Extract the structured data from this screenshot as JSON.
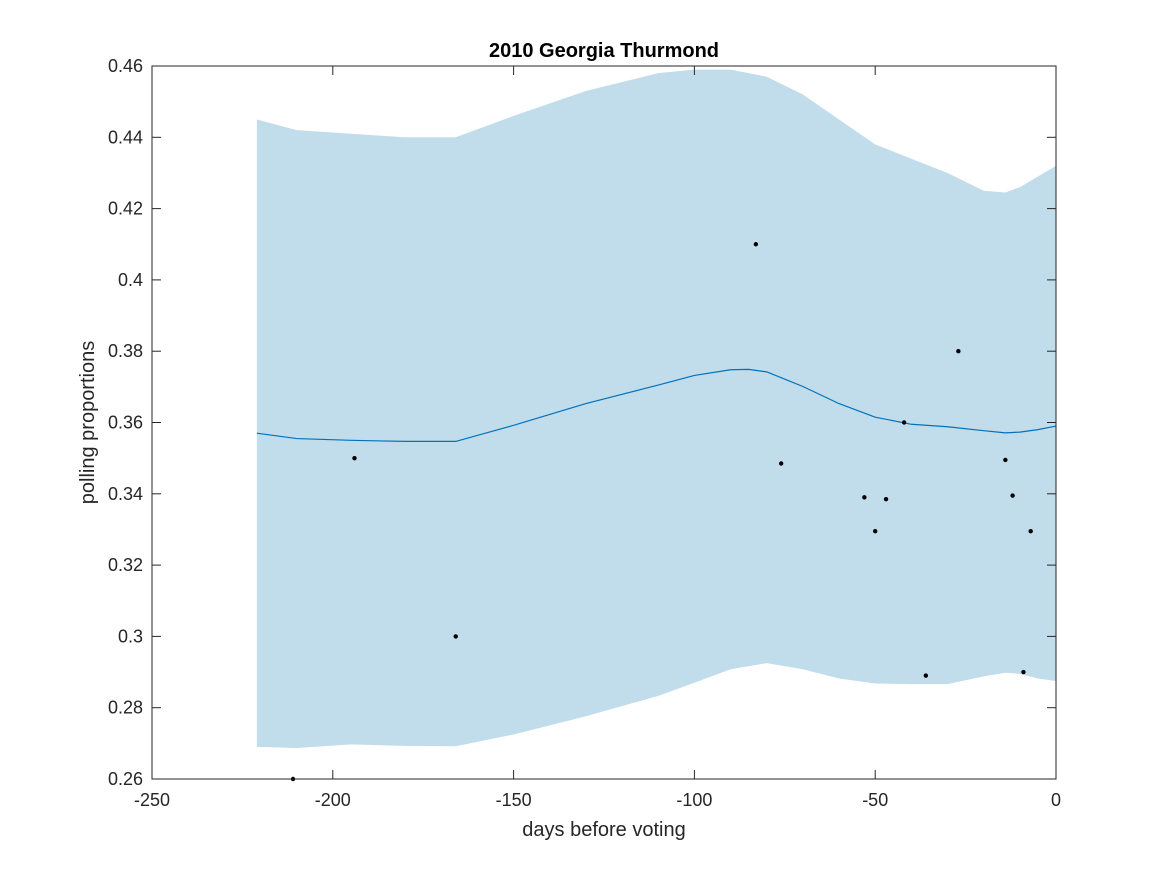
{
  "chart_data": {
    "type": "line",
    "title": "2010 Georgia Thurmond",
    "xlabel": "days before voting",
    "ylabel": "polling proportions",
    "xlim": [
      -250,
      0
    ],
    "ylim": [
      0.26,
      0.46
    ],
    "xticks": [
      -250,
      -200,
      -150,
      -100,
      -50,
      0
    ],
    "xtick_labels": [
      "-250",
      "-200",
      "-150",
      "-100",
      "-50",
      "0"
    ],
    "yticks": [
      0.26,
      0.28,
      0.3,
      0.32,
      0.34,
      0.36,
      0.38,
      0.4,
      0.42,
      0.44,
      0.46
    ],
    "ytick_labels": [
      "0.26",
      "0.28",
      "0.3",
      "0.32",
      "0.34",
      "0.36",
      "0.38",
      "0.4",
      "0.42",
      "0.44",
      "0.46"
    ],
    "grid": false,
    "colors": {
      "band": "#c1dcea",
      "line": "#0072bd",
      "points": "#000000",
      "axes": "#262626"
    },
    "band": {
      "x": [
        -221,
        -210,
        -195,
        -180,
        -166,
        -150,
        -130,
        -110,
        -100,
        -90,
        -80,
        -70,
        -60,
        -50,
        -40,
        -30,
        -20,
        -14,
        -10,
        -5,
        0
      ],
      "upper": [
        0.445,
        0.442,
        0.441,
        0.44,
        0.44,
        0.446,
        0.453,
        0.458,
        0.459,
        0.459,
        0.457,
        0.452,
        0.445,
        0.438,
        0.434,
        0.43,
        0.425,
        0.4245,
        0.426,
        0.429,
        0.432
      ],
      "lower": [
        0.269,
        0.2687,
        0.2697,
        0.2693,
        0.2692,
        0.2725,
        0.2776,
        0.2833,
        0.287,
        0.2908,
        0.2925,
        0.2908,
        0.2882,
        0.2868,
        0.2866,
        0.2866,
        0.2888,
        0.2898,
        0.2895,
        0.2882,
        0.2875
      ]
    },
    "series": [
      {
        "x": [
          -221,
          -210,
          -195,
          -180,
          -166,
          -150,
          -130,
          -110,
          -100,
          -90,
          -85,
          -80,
          -70,
          -60,
          -50,
          -40,
          -30,
          -20,
          -14,
          -10,
          -5,
          0
        ],
        "values": [
          0.357,
          0.3555,
          0.355,
          0.3547,
          0.3547,
          0.3592,
          0.3653,
          0.3705,
          0.3732,
          0.3748,
          0.3749,
          0.3742,
          0.3701,
          0.3653,
          0.3615,
          0.3595,
          0.3588,
          0.3577,
          0.3571,
          0.3573,
          0.358,
          0.359
        ]
      }
    ],
    "points": {
      "x": [
        -211,
        -194,
        -166,
        -83,
        -76,
        -53,
        -50,
        -47,
        -42,
        -36,
        -27,
        -14,
        -12,
        -9,
        -7
      ],
      "y": [
        0.26,
        0.35,
        0.3,
        0.41,
        0.3485,
        0.339,
        0.3295,
        0.3385,
        0.36,
        0.289,
        0.38,
        0.3495,
        0.3395,
        0.29,
        0.3295
      ]
    }
  }
}
